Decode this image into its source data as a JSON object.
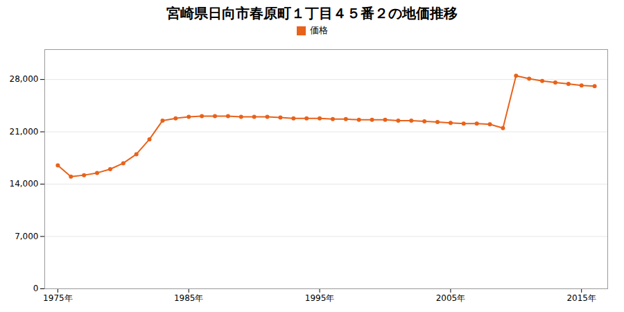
{
  "chart_data": {
    "type": "line",
    "title": "宮崎県日向市春原町１丁目４５番２の地価推移",
    "x": [
      1975,
      1976,
      1977,
      1978,
      1979,
      1980,
      1981,
      1982,
      1983,
      1984,
      1985,
      1986,
      1987,
      1988,
      1989,
      1990,
      1991,
      1992,
      1993,
      1994,
      1995,
      1996,
      1997,
      1998,
      1999,
      2000,
      2001,
      2002,
      2003,
      2004,
      2005,
      2006,
      2007,
      2008,
      2009,
      2010,
      2011,
      2012,
      2013,
      2014,
      2015,
      2016
    ],
    "series": [
      {
        "name": "価格",
        "color": "#E8621A",
        "marker": "circle",
        "values": [
          16500,
          15000,
          15200,
          15500,
          16000,
          16800,
          18000,
          20000,
          22500,
          22800,
          23000,
          23100,
          23100,
          23100,
          23000,
          23000,
          23000,
          22900,
          22800,
          22800,
          22800,
          22700,
          22700,
          22600,
          22600,
          22600,
          22500,
          22500,
          22400,
          22300,
          22200,
          22100,
          22100,
          22000,
          21500,
          28500,
          28100,
          27800,
          27600,
          27400,
          27200,
          27100
        ]
      }
    ],
    "xlim": [
      1974,
      2017
    ],
    "xticks": [
      {
        "value": 1975,
        "label": "1975年"
      },
      {
        "value": 1985,
        "label": "1985年"
      },
      {
        "value": 1995,
        "label": "1995年"
      },
      {
        "value": 2005,
        "label": "2005年"
      },
      {
        "value": 2015,
        "label": "2015年"
      }
    ],
    "ylim": [
      0,
      32000
    ],
    "yticks": [
      0,
      {
        "value": 7000,
        "label": "7,000"
      },
      {
        "value": 14000,
        "label": "14,000"
      },
      {
        "value": 21000,
        "label": "21,000"
      },
      {
        "value": 28000,
        "label": "28,000"
      }
    ],
    "grid": "y",
    "legend": "top"
  }
}
